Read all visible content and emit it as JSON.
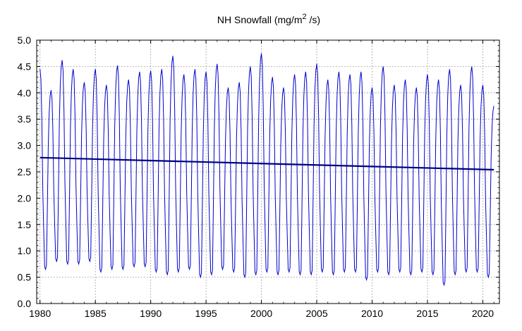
{
  "chart_data": {
    "type": "line",
    "title_parts": {
      "main": "NH Snowfall (mg/m",
      "sup": "2",
      "end": " /s)"
    },
    "xlabel": "",
    "ylabel": "",
    "xlim": [
      1979.7,
      2021.5
    ],
    "ylim": [
      0,
      5
    ],
    "xticks": [
      1980,
      1985,
      1990,
      1995,
      2000,
      2005,
      2010,
      2015,
      2020
    ],
    "xtick_labels": [
      "1980",
      "1985",
      "1990",
      "1995",
      "2000",
      "2005",
      "2010",
      "2015",
      "2020"
    ],
    "yticks": [
      0,
      0.5,
      1,
      1.5,
      2,
      2.5,
      3,
      3.5,
      4,
      4.5,
      5
    ],
    "ytick_labels": [
      "0.0",
      "0.5",
      "1.0",
      "1.5",
      "2.0",
      "2.5",
      "3.0",
      "3.5",
      "4.0",
      "4.5",
      "5.0"
    ],
    "grid": true,
    "colors": {
      "series": "#0000cc",
      "trend": "#000080",
      "grid": "#888888"
    },
    "series": [
      {
        "x_start": 1980.0,
        "x_step": 0.0833333,
        "annual_peak_x": [
          1980.0,
          1981.0,
          1982.0,
          1983.0,
          1984.0,
          1985.0,
          1986.0,
          1987.0,
          1988.0,
          1989.0,
          1990.0,
          1991.0,
          1992.0,
          1993.0,
          1994.0,
          1995.0,
          1996.0,
          1997.0,
          1998.0,
          1999.0,
          2000.0,
          2001.0,
          2002.0,
          2003.0,
          2004.0,
          2005.0,
          2006.0,
          2007.0,
          2008.0,
          2009.0,
          2010.0,
          2011.0,
          2012.0,
          2013.0,
          2014.0,
          2015.0,
          2016.0,
          2017.0,
          2018.0,
          2019.0,
          2020.0
        ],
        "annual_peak": [
          4.45,
          4.05,
          4.62,
          4.45,
          4.2,
          4.45,
          4.15,
          4.52,
          4.25,
          4.4,
          4.42,
          4.45,
          4.7,
          4.35,
          4.45,
          4.4,
          4.55,
          4.1,
          4.2,
          4.5,
          4.75,
          4.3,
          4.1,
          4.35,
          4.4,
          4.55,
          4.25,
          4.4,
          4.35,
          4.4,
          4.1,
          4.5,
          4.15,
          4.25,
          4.1,
          4.35,
          4.25,
          4.45,
          4.15,
          4.5,
          4.15
        ],
        "annual_trough": [
          0.65,
          0.8,
          0.75,
          0.75,
          0.8,
          0.6,
          0.65,
          0.65,
          0.7,
          0.7,
          0.6,
          0.55,
          0.6,
          0.65,
          0.5,
          0.55,
          0.65,
          0.6,
          0.5,
          0.55,
          0.6,
          0.55,
          0.6,
          0.55,
          0.55,
          0.6,
          0.55,
          0.6,
          0.6,
          0.45,
          0.6,
          0.55,
          0.6,
          0.55,
          0.6,
          0.55,
          0.35,
          0.55,
          0.6,
          0.6,
          0.5
        ],
        "end_value": 3.75
      },
      {
        "x": [
          1980.0,
          2021.0
        ],
        "y": [
          2.77,
          2.54
        ]
      }
    ]
  }
}
